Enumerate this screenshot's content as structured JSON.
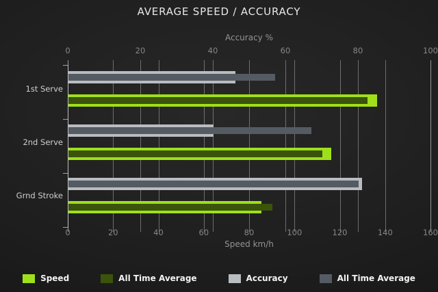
{
  "chart_data": {
    "type": "bar",
    "orientation": "horizontal",
    "title": "AVERAGE SPEED / ACCURACY",
    "categories": [
      "1st Serve",
      "2nd Serve",
      "Grnd Stroke"
    ],
    "axes": {
      "top": {
        "label": "Accuracy %",
        "min": 0,
        "max": 100,
        "ticks": [
          0,
          20,
          40,
          60,
          80,
          100
        ]
      },
      "bottom": {
        "label": "Speed km/h",
        "min": 0,
        "max": 160,
        "ticks": [
          0,
          20,
          40,
          60,
          80,
          100,
          120,
          140,
          160
        ]
      }
    },
    "grid": "both-axes-vertical",
    "legend_position": "bottom",
    "series": [
      {
        "name": "Speed",
        "axis": "bottom",
        "role": "main",
        "color": "#9fe01a",
        "values": [
          136,
          116,
          85
        ]
      },
      {
        "name": "All Time Average",
        "axis": "bottom",
        "role": "overlay",
        "color": "#3b530b",
        "values": [
          132,
          112,
          90
        ]
      },
      {
        "name": "Accuracy",
        "axis": "top",
        "role": "main",
        "color": "#b9bdc1",
        "values": [
          46,
          40,
          81
        ]
      },
      {
        "name": "All Time Average",
        "axis": "top",
        "role": "overlay",
        "color": "#555b62",
        "values": [
          57,
          67,
          80
        ]
      }
    ],
    "colors": {
      "background": "#1e1e1e",
      "title_text": "#e8e8e8",
      "axis_text": "#949494",
      "gridline": "#c3c3c3"
    }
  }
}
